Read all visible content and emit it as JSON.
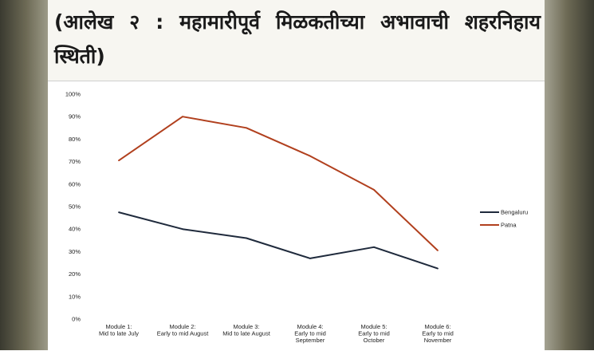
{
  "page": {
    "title": "(आलेख २ : महामारीपूर्व मिळकतीच्या अभावाची शहरनिहाय स्थिती)"
  },
  "chart_data": {
    "type": "line",
    "title": "(आलेख २ : महामारीपूर्व मिळकतीच्या अभावाची शहरनिहाय स्थिती)",
    "categories": [
      [
        "Module 1:",
        "Mid to late July"
      ],
      [
        "Module 2:",
        "Early to mid August"
      ],
      [
        "Module 3:",
        "Mid to late August"
      ],
      [
        "Module 4:",
        "Early to mid",
        "September"
      ],
      [
        "Module 5:",
        "Early to mid",
        "October"
      ],
      [
        "Module 6:",
        "Early to mid",
        "November"
      ]
    ],
    "series": [
      {
        "name": "Bengaluru",
        "color": "#1f2a3c",
        "values": [
          47.5,
          40,
          36,
          27,
          32,
          22.5
        ]
      },
      {
        "name": "Patna",
        "color": "#b1401e",
        "values": [
          70.5,
          90,
          85,
          72.5,
          57.5,
          30.5
        ]
      }
    ],
    "yticks": [
      "0%",
      "10%",
      "20%",
      "30%",
      "40%",
      "50%",
      "60%",
      "70%",
      "80%",
      "90%",
      "100%"
    ],
    "ylim": [
      0,
      100
    ],
    "xlabel": "",
    "ylabel": "",
    "grid": false,
    "legend": "right"
  }
}
